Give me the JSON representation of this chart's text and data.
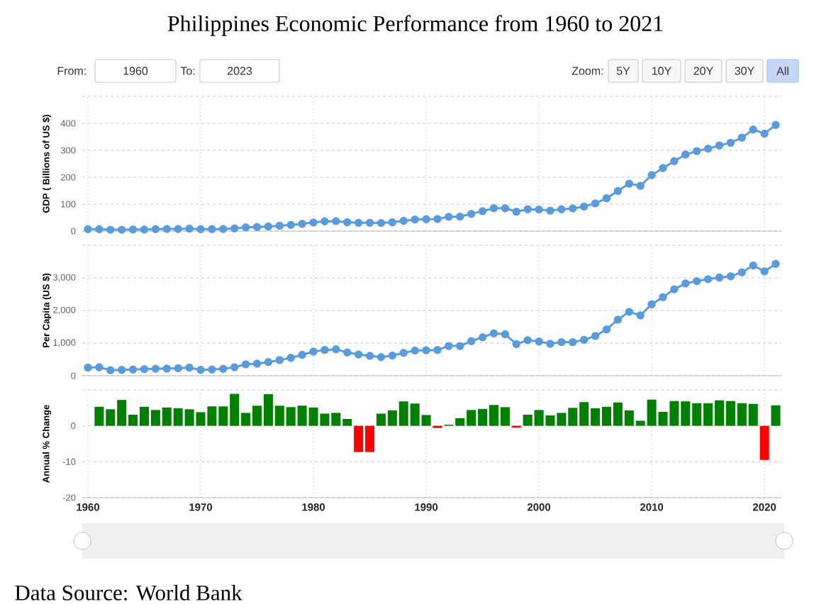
{
  "chart_data": [
    {
      "type": "line",
      "title": "Philippines Economic Performance from 1960 to 2021",
      "annotations": [
        "From:",
        "1960",
        "To:",
        "2023",
        "Zoom:",
        "5Y",
        "10Y",
        "20Y",
        "30Y",
        "All"
      ],
      "ylabel": "GDP ( Billions of US $)",
      "x": [
        1960,
        1961,
        1962,
        1963,
        1964,
        1965,
        1966,
        1967,
        1968,
        1969,
        1970,
        1971,
        1972,
        1973,
        1974,
        1975,
        1976,
        1977,
        1978,
        1979,
        1980,
        1981,
        1982,
        1983,
        1984,
        1985,
        1986,
        1987,
        1988,
        1989,
        1990,
        1991,
        1992,
        1993,
        1994,
        1995,
        1996,
        1997,
        1998,
        1999,
        2000,
        2001,
        2002,
        2003,
        2004,
        2005,
        2006,
        2007,
        2008,
        2009,
        2010,
        2011,
        2012,
        2013,
        2014,
        2015,
        2016,
        2017,
        2018,
        2019,
        2020,
        2021
      ],
      "values": [
        7,
        7,
        5,
        5,
        6,
        6,
        7,
        8,
        8,
        9,
        7,
        7,
        8,
        10,
        14,
        15,
        17,
        20,
        23,
        27,
        32,
        36,
        37,
        33,
        31,
        31,
        30,
        33,
        38,
        43,
        44,
        45,
        53,
        54,
        64,
        74,
        85,
        85,
        72,
        81,
        80,
        76,
        81,
        84,
        91,
        103,
        122,
        149,
        176,
        168,
        208,
        234,
        260,
        284,
        297,
        306,
        318,
        328,
        347,
        377,
        362,
        394
      ],
      "color": "#5a9bdc",
      "marker": "circle",
      "xlim": [
        1959.5,
        2021.5
      ],
      "xticks": [
        1960,
        1970,
        1980,
        1990,
        2000,
        2010,
        2020
      ],
      "ylim": [
        0,
        500
      ],
      "yticks": [
        0,
        100,
        200,
        300,
        400,
        {
          "value": 500,
          "label": null
        }
      ],
      "grid": true,
      "tick_labels": "y"
    },
    {
      "type": "line",
      "ylabel": "Per Capita (US $)",
      "x": [
        1960,
        1961,
        1962,
        1963,
        1964,
        1965,
        1966,
        1967,
        1968,
        1969,
        1970,
        1971,
        1972,
        1973,
        1974,
        1975,
        1976,
        1977,
        1978,
        1979,
        1980,
        1981,
        1982,
        1983,
        1984,
        1985,
        1986,
        1987,
        1988,
        1989,
        1990,
        1991,
        1992,
        1993,
        1994,
        1995,
        1996,
        1997,
        1998,
        1999,
        2000,
        2001,
        2002,
        2003,
        2004,
        2005,
        2006,
        2007,
        2008,
        2009,
        2010,
        2011,
        2012,
        2013,
        2014,
        2015,
        2016,
        2017,
        2018,
        2019,
        2020,
        2021
      ],
      "values": [
        250,
        260,
        170,
        180,
        190,
        200,
        210,
        220,
        230,
        250,
        180,
        190,
        210,
        260,
        350,
        370,
        420,
        480,
        550,
        640,
        740,
        790,
        810,
        710,
        650,
        610,
        570,
        620,
        700,
        770,
        780,
        790,
        910,
        910,
        1060,
        1180,
        1300,
        1270,
        970,
        1090,
        1050,
        980,
        1030,
        1030,
        1100,
        1220,
        1420,
        1720,
        1960,
        1850,
        2190,
        2410,
        2650,
        2830,
        2900,
        2960,
        3010,
        3050,
        3170,
        3380,
        3200,
        3430
      ],
      "color": "#5a9bdc",
      "marker": "circle",
      "xlim": [
        1959.5,
        2021.5
      ],
      "xticks": [
        1960,
        1970,
        1980,
        1990,
        2000,
        2010,
        2020
      ],
      "ylim": [
        0,
        4000
      ],
      "yticks": [
        0,
        {
          "value": 1000,
          "label": "1,000"
        },
        {
          "value": 2000,
          "label": "2,000"
        },
        {
          "value": 3000,
          "label": "3,000"
        },
        {
          "value": 4000,
          "label": null
        }
      ],
      "grid": true,
      "tick_labels": "y"
    },
    {
      "type": "bar",
      "ylabel": "Annual % Change",
      "annotations": [
        "Data Source: World Bank"
      ],
      "x": [
        1961,
        1962,
        1963,
        1964,
        1965,
        1966,
        1967,
        1968,
        1969,
        1970,
        1971,
        1972,
        1973,
        1974,
        1975,
        1976,
        1977,
        1978,
        1979,
        1980,
        1981,
        1982,
        1983,
        1984,
        1985,
        1986,
        1987,
        1988,
        1989,
        1990,
        1991,
        1992,
        1993,
        1994,
        1995,
        1996,
        1997,
        1998,
        1999,
        2000,
        2001,
        2002,
        2003,
        2004,
        2005,
        2006,
        2007,
        2008,
        2009,
        2010,
        2011,
        2012,
        2013,
        2014,
        2015,
        2016,
        2017,
        2018,
        2019,
        2020,
        2021
      ],
      "values": [
        5.3,
        4.6,
        7.2,
        3.1,
        5.3,
        4.4,
        5.1,
        4.9,
        4.6,
        3.8,
        5.4,
        5.4,
        8.9,
        3.6,
        5.6,
        8.8,
        5.6,
        5.2,
        5.6,
        5.1,
        3.4,
        3.6,
        1.9,
        -7.3,
        -7.3,
        3.4,
        4.3,
        6.8,
        6.2,
        3.0,
        -0.6,
        0.3,
        2.1,
        4.4,
        4.7,
        5.8,
        5.2,
        -0.5,
        3.1,
        4.4,
        2.9,
        3.6,
        5.0,
        6.6,
        4.9,
        5.3,
        6.5,
        4.3,
        1.4,
        7.3,
        3.9,
        6.9,
        6.8,
        6.3,
        6.3,
        7.1,
        6.9,
        6.3,
        6.1,
        -9.5,
        5.7
      ],
      "colors": [
        "#008000",
        "#008000",
        "#008000",
        "#008000",
        "#008000",
        "#008000",
        "#008000",
        "#008000",
        "#008000",
        "#008000",
        "#008000",
        "#008000",
        "#008000",
        "#008000",
        "#008000",
        "#008000",
        "#008000",
        "#008000",
        "#008000",
        "#008000",
        "#008000",
        "#008000",
        "#008000",
        "#ff0000",
        "#ff0000",
        "#008000",
        "#008000",
        "#008000",
        "#008000",
        "#008000",
        "#ff0000",
        "#008000",
        "#008000",
        "#008000",
        "#008000",
        "#008000",
        "#008000",
        "#ff0000",
        "#008000",
        "#008000",
        "#008000",
        "#008000",
        "#008000",
        "#008000",
        "#008000",
        "#008000",
        "#008000",
        "#008000",
        "#008000",
        "#008000",
        "#008000",
        "#008000",
        "#008000",
        "#008000",
        "#008000",
        "#008000",
        "#008000",
        "#008000",
        "#008000",
        "#ff0000",
        "#008000"
      ],
      "xlim": [
        1959.5,
        2021.5
      ],
      "xticks": [
        1960,
        1970,
        1980,
        1990,
        2000,
        2010,
        2020
      ],
      "ylim": [
        -20,
        10
      ],
      "yticks": [
        -20,
        -10,
        0,
        {
          "value": 10,
          "label": null
        }
      ],
      "grid": true
    }
  ]
}
